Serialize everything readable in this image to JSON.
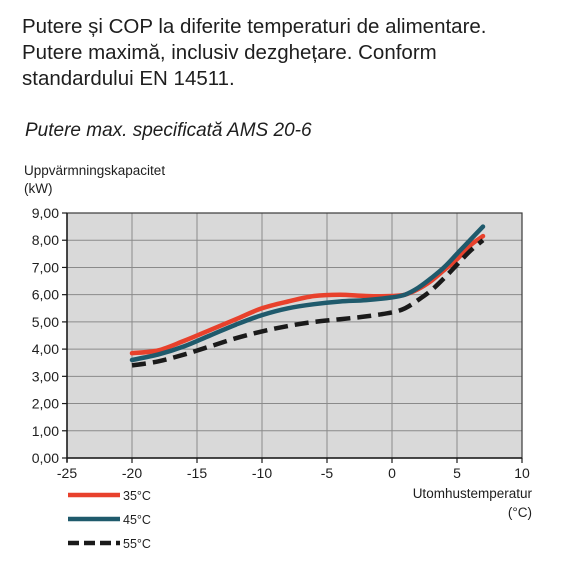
{
  "heading": {
    "lines": [
      "Putere și COP la diferite temperaturi de alimentare.",
      "Putere maximă, inclusiv dezghețare. Conform",
      "standardului EN 14511."
    ]
  },
  "chart_data": {
    "type": "line",
    "title": "Putere max. specificată AMS 20-6",
    "ylabel_lines": [
      "Uppvärmningskapacitet",
      "(kW)"
    ],
    "xlabel_lines": [
      "Utomhustemperatur",
      "(°C)"
    ],
    "xlim": [
      -25,
      10
    ],
    "ylim": [
      0,
      9
    ],
    "x_ticks": [
      -25,
      -20,
      -15,
      -10,
      -5,
      0,
      5,
      10
    ],
    "x_tick_labels": [
      "-25",
      "-20",
      "-15",
      "-10",
      "-5",
      "0",
      "5",
      "10"
    ],
    "y_ticks": [
      0,
      1,
      2,
      3,
      4,
      5,
      6,
      7,
      8,
      9
    ],
    "y_tick_labels": [
      "0,00",
      "1,00",
      "2,00",
      "3,00",
      "4,00",
      "5,00",
      "6,00",
      "7,00",
      "8,00",
      "9,00"
    ],
    "grid": true,
    "legend_position": "bottom-left",
    "series": [
      {
        "name": "35°C",
        "color": "#e8412c",
        "style": "solid",
        "x": [
          -20,
          -18,
          -16,
          -14,
          -12,
          -10,
          -8,
          -6,
          -4,
          -2,
          0,
          1,
          2,
          3,
          4,
          5,
          6,
          7
        ],
        "y": [
          3.85,
          3.95,
          4.3,
          4.7,
          5.1,
          5.5,
          5.75,
          5.95,
          6.0,
          5.95,
          5.95,
          6.0,
          6.2,
          6.5,
          6.9,
          7.3,
          7.8,
          8.15
        ]
      },
      {
        "name": "45°C",
        "color": "#1f5a6c",
        "style": "solid",
        "x": [
          -20,
          -18,
          -16,
          -14,
          -12,
          -10,
          -8,
          -6,
          -4,
          -2,
          0,
          1,
          2,
          3,
          4,
          5,
          6,
          7
        ],
        "y": [
          3.6,
          3.8,
          4.1,
          4.5,
          4.9,
          5.25,
          5.5,
          5.65,
          5.75,
          5.8,
          5.9,
          6.0,
          6.25,
          6.6,
          7.0,
          7.5,
          8.0,
          8.5
        ]
      },
      {
        "name": "55°C",
        "color": "#1a1a1a",
        "style": "dashed",
        "x": [
          -20,
          -18,
          -16,
          -14,
          -12,
          -10,
          -8,
          -6,
          -4,
          -2,
          0,
          1,
          2,
          3,
          4,
          5,
          6,
          7
        ],
        "y": [
          3.4,
          3.55,
          3.8,
          4.1,
          4.4,
          4.65,
          4.85,
          5.0,
          5.1,
          5.2,
          5.35,
          5.5,
          5.8,
          6.15,
          6.6,
          7.1,
          7.6,
          8.0
        ]
      }
    ]
  }
}
